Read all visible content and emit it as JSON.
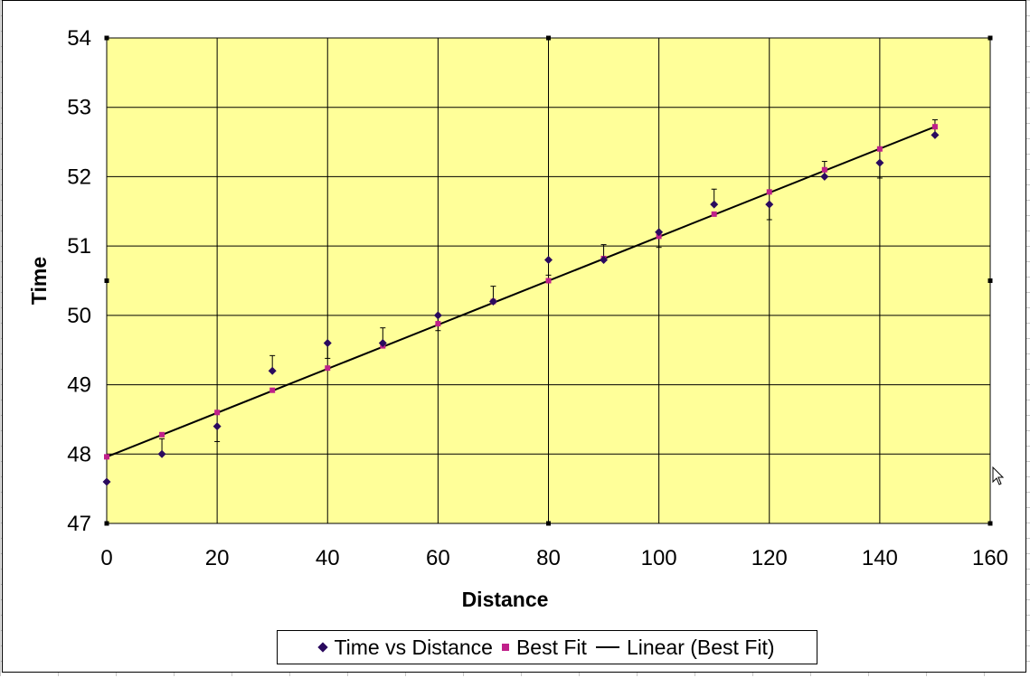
{
  "chart_data": {
    "type": "scatter",
    "xlabel": "Distance",
    "ylabel": "Time",
    "xlim": [
      0,
      160
    ],
    "ylim": [
      47,
      54
    ],
    "x_ticks": [
      0,
      20,
      40,
      60,
      80,
      100,
      120,
      140,
      160
    ],
    "y_ticks": [
      47,
      48,
      49,
      50,
      51,
      52,
      53,
      54
    ],
    "grid": true,
    "plot_background": "#ffff99",
    "legend_position": "bottom",
    "series": [
      {
        "name": "Time vs Distance",
        "marker": "diamond",
        "color": "#2a0a5e",
        "x": [
          0,
          10,
          20,
          30,
          40,
          50,
          60,
          70,
          80,
          90,
          100,
          110,
          120,
          130,
          140,
          150
        ],
        "y": [
          47.6,
          48.0,
          48.4,
          49.2,
          49.6,
          49.6,
          50.0,
          50.2,
          50.8,
          50.8,
          51.2,
          51.6,
          51.6,
          52.0,
          52.2,
          52.6
        ],
        "error": 0.22
      },
      {
        "name": "Best Fit",
        "marker": "square",
        "color": "#c0208a",
        "x": [
          0,
          10,
          20,
          30,
          40,
          50,
          60,
          70,
          80,
          90,
          100,
          110,
          120,
          130,
          140,
          150
        ],
        "y": [
          47.96,
          48.28,
          48.6,
          48.92,
          49.24,
          49.56,
          49.88,
          50.2,
          50.5,
          50.82,
          51.14,
          51.46,
          51.78,
          52.1,
          52.4,
          52.72
        ]
      },
      {
        "name": "Linear (Best Fit)",
        "marker": "line",
        "color": "#000000",
        "x": [
          0,
          150
        ],
        "y": [
          47.96,
          52.72
        ]
      }
    ]
  }
}
